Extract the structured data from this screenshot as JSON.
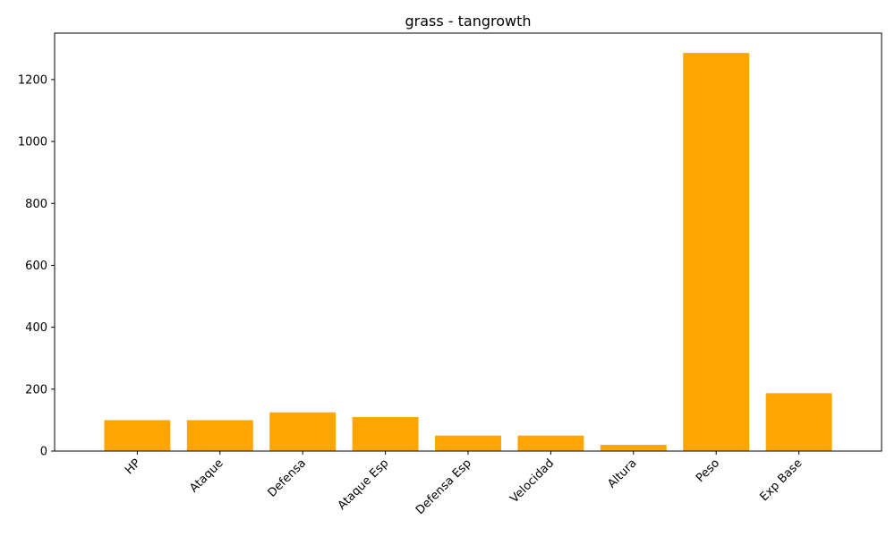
{
  "chart_data": {
    "type": "bar",
    "title": "grass - tangrowth",
    "xlabel": "",
    "ylabel": "",
    "categories": [
      "HP",
      "Ataque",
      "Defensa",
      "Ataque Esp",
      "Defensa Esp",
      "Velocidad",
      "Altura",
      "Peso",
      "Exp Base"
    ],
    "values": [
      100,
      100,
      125,
      110,
      50,
      50,
      20,
      1286,
      187
    ],
    "ylim": [
      0,
      1350
    ],
    "yticks": [
      0,
      200,
      400,
      600,
      800,
      1000,
      1200
    ],
    "bar_color": "#ffa500",
    "grid": false,
    "x_tick_rotation": 45
  }
}
